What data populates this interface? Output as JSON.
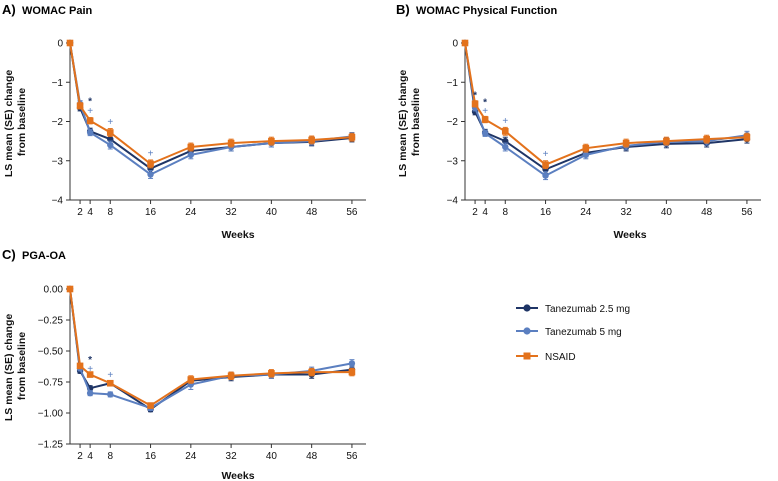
{
  "figure": {
    "legend": [
      {
        "name": "Tanezumab 2.5 mg",
        "color": "#1f3566",
        "marker": "circle"
      },
      {
        "name": "Tanezumab 5 mg",
        "color": "#5b7fc0",
        "marker": "circle"
      },
      {
        "name": "NSAID",
        "color": "#e3721c",
        "marker": "square"
      }
    ]
  },
  "chart_data": [
    {
      "type": "line",
      "panel_label": "A)",
      "title": "WOMAC Pain",
      "xlabel": "Weeks",
      "ylabel": [
        "LS mean (SE) change",
        "from baseline"
      ],
      "x": [
        0,
        2,
        4,
        8,
        16,
        24,
        32,
        40,
        48,
        56
      ],
      "xticks": [
        2,
        4,
        8,
        16,
        24,
        32,
        40,
        48,
        56
      ],
      "xlim": [
        0,
        58
      ],
      "ylim": [
        -4,
        0
      ],
      "yticks": [
        0,
        -1,
        -2,
        -3,
        -4
      ],
      "ytick_labels": [
        "0",
        "−1",
        "−2",
        "−3",
        "−4"
      ],
      "series": [
        {
          "name": "Tanezumab 2.5 mg",
          "values": [
            0,
            -1.65,
            -2.25,
            -2.45,
            -3.2,
            -2.75,
            -2.65,
            -2.55,
            -2.52,
            -2.42
          ],
          "se": [
            0,
            0.08,
            0.08,
            0.1,
            0.1,
            0.1,
            0.1,
            0.1,
            0.1,
            0.1
          ]
        },
        {
          "name": "Tanezumab 5 mg",
          "values": [
            0,
            -1.55,
            -2.28,
            -2.6,
            -3.35,
            -2.85,
            -2.65,
            -2.55,
            -2.5,
            -2.38
          ],
          "se": [
            0,
            0.08,
            0.08,
            0.1,
            0.1,
            0.1,
            0.1,
            0.1,
            0.1,
            0.1
          ]
        },
        {
          "name": "NSAID",
          "values": [
            0,
            -1.6,
            -1.98,
            -2.28,
            -3.08,
            -2.65,
            -2.55,
            -2.5,
            -2.47,
            -2.4
          ],
          "se": [
            0,
            0.08,
            0.08,
            0.1,
            0.1,
            0.1,
            0.1,
            0.1,
            0.1,
            0.1
          ]
        }
      ],
      "annotations": [
        {
          "x": 4,
          "y": -1.48,
          "text": "*",
          "color": "#1f3566"
        },
        {
          "x": 4,
          "y": -1.72,
          "text": "+",
          "color": "#5b7fc0"
        },
        {
          "x": 8,
          "y": -2.0,
          "text": "+",
          "color": "#5b7fc0"
        },
        {
          "x": 16,
          "y": -2.8,
          "text": "+",
          "color": "#5b7fc0"
        }
      ]
    },
    {
      "type": "line",
      "panel_label": "B)",
      "title": "WOMAC Physical Function",
      "xlabel": "Weeks",
      "ylabel": [
        "LS mean (SE) change",
        "from baseline"
      ],
      "x": [
        0,
        2,
        4,
        8,
        16,
        24,
        32,
        40,
        48,
        56
      ],
      "xticks": [
        2,
        4,
        8,
        16,
        24,
        32,
        40,
        48,
        56
      ],
      "xlim": [
        0,
        58
      ],
      "ylim": [
        -4,
        0
      ],
      "yticks": [
        0,
        -1,
        -2,
        -3,
        -4
      ],
      "ytick_labels": [
        "0",
        "−1",
        "−2",
        "−3",
        "−4"
      ],
      "series": [
        {
          "name": "Tanezumab 2.5 mg",
          "values": [
            0,
            -1.75,
            -2.28,
            -2.5,
            -3.22,
            -2.8,
            -2.65,
            -2.57,
            -2.55,
            -2.45
          ],
          "se": [
            0,
            0.08,
            0.08,
            0.1,
            0.1,
            0.1,
            0.1,
            0.1,
            0.1,
            0.1
          ]
        },
        {
          "name": "Tanezumab 5 mg",
          "values": [
            0,
            -1.65,
            -2.3,
            -2.65,
            -3.38,
            -2.85,
            -2.62,
            -2.52,
            -2.5,
            -2.35
          ],
          "se": [
            0,
            0.08,
            0.08,
            0.1,
            0.1,
            0.1,
            0.1,
            0.1,
            0.1,
            0.1
          ]
        },
        {
          "name": "NSAID",
          "values": [
            0,
            -1.55,
            -1.95,
            -2.25,
            -3.1,
            -2.68,
            -2.55,
            -2.5,
            -2.45,
            -2.4
          ],
          "se": [
            0,
            0.08,
            0.08,
            0.1,
            0.1,
            0.1,
            0.1,
            0.1,
            0.1,
            0.1
          ]
        }
      ],
      "annotations": [
        {
          "x": 2,
          "y": -1.32,
          "text": "*",
          "color": "#1f3566"
        },
        {
          "x": 4,
          "y": -1.5,
          "text": "*",
          "color": "#1f3566"
        },
        {
          "x": 4,
          "y": -1.72,
          "text": "+",
          "color": "#5b7fc0"
        },
        {
          "x": 8,
          "y": -1.98,
          "text": "+",
          "color": "#5b7fc0"
        },
        {
          "x": 16,
          "y": -2.82,
          "text": "+",
          "color": "#5b7fc0"
        }
      ]
    },
    {
      "type": "line",
      "panel_label": "C)",
      "title": "PGA-OA",
      "xlabel": "Weeks",
      "ylabel": [
        "LS mean (SE) change",
        "from baseline"
      ],
      "x": [
        0,
        2,
        4,
        8,
        16,
        24,
        32,
        40,
        48,
        56
      ],
      "xticks": [
        2,
        4,
        8,
        16,
        24,
        32,
        40,
        48,
        56
      ],
      "xlim": [
        0,
        58
      ],
      "ylim": [
        -1.25,
        0
      ],
      "yticks": [
        0,
        -0.25,
        -0.5,
        -0.75,
        -1.0,
        -1.25
      ],
      "ytick_labels": [
        "0.00",
        "−0.25",
        "−0.50",
        "−0.75",
        "−1.00",
        "−1.25"
      ],
      "series": [
        {
          "name": "Tanezumab 2.5 mg",
          "values": [
            0,
            -0.66,
            -0.8,
            -0.76,
            -0.97,
            -0.74,
            -0.71,
            -0.69,
            -0.69,
            -0.65
          ],
          "se": [
            0,
            0.02,
            0.02,
            0.02,
            0.02,
            0.03,
            0.03,
            0.03,
            0.03,
            0.03
          ]
        },
        {
          "name": "Tanezumab 5 mg",
          "values": [
            0,
            -0.64,
            -0.84,
            -0.85,
            -0.96,
            -0.77,
            -0.7,
            -0.69,
            -0.66,
            -0.6
          ],
          "se": [
            0,
            0.02,
            0.02,
            0.02,
            0.02,
            0.04,
            0.03,
            0.03,
            0.03,
            0.03
          ]
        },
        {
          "name": "NSAID",
          "values": [
            0,
            -0.62,
            -0.69,
            -0.76,
            -0.94,
            -0.73,
            -0.7,
            -0.68,
            -0.67,
            -0.67
          ],
          "se": [
            0,
            0.02,
            0.02,
            0.02,
            0.02,
            0.03,
            0.03,
            0.03,
            0.03,
            0.03
          ]
        }
      ],
      "annotations": [
        {
          "x": 4,
          "y": -0.57,
          "text": "*",
          "color": "#1f3566"
        },
        {
          "x": 4,
          "y": -0.64,
          "text": "+",
          "color": "#5b7fc0"
        },
        {
          "x": 8,
          "y": -0.69,
          "text": "+",
          "color": "#5b7fc0"
        }
      ]
    }
  ]
}
